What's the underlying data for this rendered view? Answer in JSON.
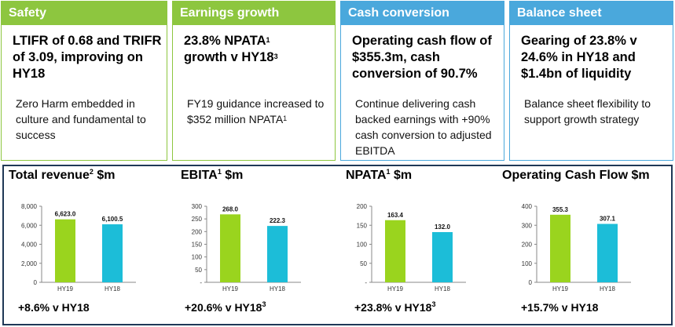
{
  "cards": [
    {
      "title": "Safety",
      "big": "LTIFR of 0.68 and TRIFR of 3.09, improving on HY18",
      "small": "Zero Harm embedded in culture and fundamental to success",
      "small_sup": "",
      "color": "#8dc63f"
    },
    {
      "title": "Earnings growth",
      "big": "23.8% NPATA",
      "big_sup": "1",
      "big2": "growth v HY18",
      "big2_sup": "3",
      "small": "FY19 guidance increased to $352 million NPATA",
      "small_sup": "1",
      "color": "#8dc63f"
    },
    {
      "title": "Cash conversion",
      "big": "Operating cash flow of $355.3m, cash conversion of 90.7%",
      "small": "Continue delivering cash backed earnings with +90% cash conversion to adjusted EBITDA",
      "small_sup": "",
      "color": "#4aa8dc"
    },
    {
      "title": "Balance sheet",
      "big": "Gearing of 23.8% v 24.6% in HY18 and $1.4bn of liquidity",
      "small": "Balance sheet flexibility to support growth strategy",
      "small_sup": "",
      "color": "#4aa8dc"
    }
  ],
  "colors": {
    "green": "#9ad41e",
    "blue": "#1cbdd8",
    "panel_border": "#1f3856"
  },
  "chart_data": [
    {
      "type": "bar",
      "title": "Total revenue",
      "title_sup": "2",
      "title_suffix": "$m",
      "categories": [
        "HY19",
        "HY18"
      ],
      "values": [
        6623.0,
        6100.5
      ],
      "value_labels": [
        "6,623.0",
        "6,100.5"
      ],
      "ylim": [
        0,
        8000
      ],
      "yticks": [
        0,
        2000,
        4000,
        6000,
        8000
      ],
      "ytick_labels": [
        "0",
        "2,000",
        "4,000",
        "6,000",
        "8,000"
      ],
      "growth": "+8.6% v HY18",
      "growth_sup": ""
    },
    {
      "type": "bar",
      "title": "EBITA",
      "title_sup": "1",
      "title_suffix": "$m",
      "categories": [
        "HY19",
        "HY18"
      ],
      "values": [
        268.0,
        222.3
      ],
      "value_labels": [
        "268.0",
        "222.3"
      ],
      "ylim": [
        0,
        300
      ],
      "yticks": [
        0,
        50,
        100,
        150,
        200,
        250,
        300
      ],
      "ytick_labels": [
        "-",
        "50",
        "100",
        "150",
        "200",
        "250",
        "300"
      ],
      "growth": "+20.6% v HY18",
      "growth_sup": "3"
    },
    {
      "type": "bar",
      "title": "NPATA",
      "title_sup": "1",
      "title_suffix": "$m",
      "categories": [
        "HY19",
        "HY18"
      ],
      "values": [
        163.4,
        132.0
      ],
      "value_labels": [
        "163.4",
        "132.0"
      ],
      "ylim": [
        0,
        200
      ],
      "yticks": [
        0,
        50,
        100,
        150,
        200
      ],
      "ytick_labels": [
        "-",
        "50",
        "100",
        "150",
        "200"
      ],
      "growth": "+23.8% v HY18",
      "growth_sup": "3"
    },
    {
      "type": "bar",
      "title": "Operating Cash Flow $m",
      "title_sup": "",
      "title_suffix": "",
      "categories": [
        "HY19",
        "HY18"
      ],
      "values": [
        355.3,
        307.1
      ],
      "value_labels": [
        "355.3",
        "307.1"
      ],
      "ylim": [
        0,
        400
      ],
      "yticks": [
        0,
        100,
        200,
        300,
        400
      ],
      "ytick_labels": [
        "0",
        "100",
        "200",
        "300",
        "400"
      ],
      "growth": "+15.7% v HY18",
      "growth_sup": ""
    }
  ]
}
